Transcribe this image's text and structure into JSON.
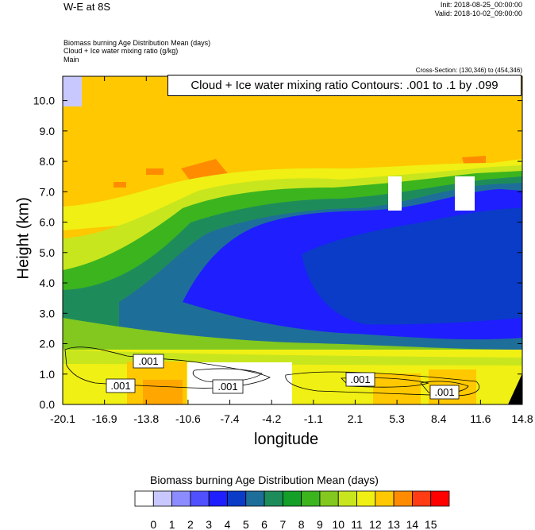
{
  "header": {
    "title": "W-E at 8S",
    "init": "Init: 2018-08-25_00:00:00",
    "valid": "Valid: 2018-10-02_09:00:00",
    "desc_lines": [
      "Biomass burning Age Distribution Mean   (days)",
      "Cloud + Ice water mixing ratio   (g/kg)",
      "Main"
    ],
    "cross_section": "Cross-Section: (130,346) to (454,346)",
    "contour_info": "Cloud + Ice water mixing ratio Contours: .001 to .1 by .099"
  },
  "colorbar": {
    "title": "Biomass burning Age Distribution Mean  (days)",
    "labels": [
      "0",
      "1",
      "2",
      "3",
      "4",
      "5",
      "6",
      "7",
      "8",
      "9",
      "10",
      "11",
      "12",
      "13",
      "14",
      "15"
    ],
    "colors": [
      "#ffffff",
      "#c8c8ff",
      "#8c8cff",
      "#5050ff",
      "#1e1eff",
      "#0a3cc8",
      "#1e6e9a",
      "#1e8c5a",
      "#14a028",
      "#3cb41e",
      "#82c81e",
      "#c8e61e",
      "#f0f014",
      "#ffc800",
      "#ff8c00",
      "#ff3c14",
      "#ff0000"
    ]
  },
  "chart_data": {
    "type": "heatmap",
    "title": "W-E at 8S",
    "xlabel": "longitude",
    "ylabel": "Height (km)",
    "xlim": [
      -20.1,
      14.8
    ],
    "ylim": [
      0.0,
      10.8
    ],
    "xticks": [
      "-20.1",
      "-16.9",
      "-13.8",
      "-10.6",
      "-7.4",
      "-4.2",
      "-1.1",
      "2.1",
      "5.3",
      "8.4",
      "11.6",
      "14.8"
    ],
    "yticks": [
      "0.0",
      "1.0",
      "2.0",
      "3.0",
      "4.0",
      "5.0",
      "6.0",
      "7.0",
      "8.0",
      "9.0",
      "10.0"
    ],
    "ytick_values": [
      0,
      1,
      2,
      3,
      4,
      5,
      6,
      7,
      8,
      9,
      10
    ],
    "field_description_levels_days": {
      "upper_troposphere_above_8km": 13,
      "mid_plume_core_3_to_6km_east_of_minus8": 4,
      "lower_boundary_layer_below_1.5km": 12,
      "transition_band_2_to_3km": 7
    },
    "contour_labels": [
      ".001",
      ".001",
      ".001",
      ".001",
      ".001"
    ],
    "contour_levels": [
      0.001,
      0.1
    ]
  }
}
